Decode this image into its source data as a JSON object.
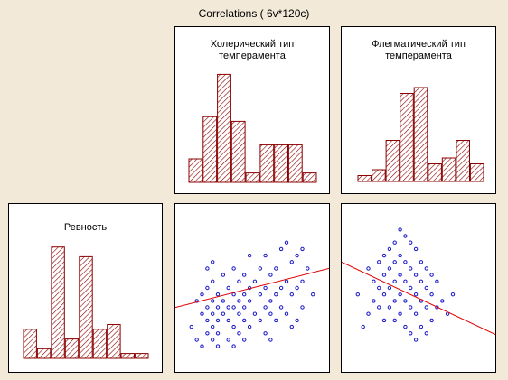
{
  "title": "Correlations ( 6v*120c)",
  "colors": {
    "bar_stroke": "#8b0000",
    "bar_hatch": "#8b0000",
    "point": "#1a1ac8",
    "fit_line": "#e00000",
    "background": "#f2e9d8"
  },
  "chart_data": [
    {
      "type": "bar",
      "title": "Холерический тип\nтемперамента",
      "values": [
        5,
        14,
        23,
        13,
        2,
        8,
        8,
        8,
        2
      ],
      "ylim": [
        0,
        25
      ]
    },
    {
      "type": "bar",
      "title": "Флегматический тип\nтемперамента",
      "values": [
        1,
        2,
        7,
        15,
        16,
        3,
        4,
        7,
        3
      ],
      "ylim": [
        0,
        18
      ]
    },
    {
      "type": "bar",
      "title": "Ревность",
      "values": [
        6,
        2,
        23,
        4,
        21,
        6,
        7,
        1,
        1
      ],
      "ylim": [
        0,
        25
      ]
    },
    {
      "type": "scatter",
      "x": [
        1,
        2,
        2,
        3,
        3,
        3,
        4,
        4,
        4,
        4,
        4,
        5,
        5,
        5,
        5,
        5,
        5,
        6,
        6,
        6,
        6,
        6,
        7,
        7,
        7,
        8,
        8,
        8,
        8,
        9,
        9,
        9,
        9,
        9,
        10,
        10,
        10,
        10,
        11,
        11,
        11,
        11,
        11,
        12,
        12,
        12,
        12,
        13,
        13,
        14,
        14,
        14,
        15,
        15,
        15,
        15,
        16,
        16,
        16,
        16,
        17,
        17,
        17,
        18,
        18,
        18,
        19,
        19,
        19,
        20,
        20,
        20,
        21,
        21,
        21,
        22,
        22,
        22,
        23,
        24
      ],
      "y": [
        5,
        9,
        3,
        10,
        7,
        2,
        11,
        8,
        6,
        4,
        14,
        12,
        9,
        7,
        5,
        3,
        15,
        10,
        8,
        6,
        4,
        2,
        13,
        9,
        7,
        11,
        8,
        6,
        3,
        14,
        10,
        8,
        5,
        2,
        12,
        9,
        7,
        4,
        13,
        10,
        8,
        6,
        3,
        16,
        11,
        9,
        5,
        12,
        7,
        14,
        10,
        6,
        16,
        11,
        8,
        4,
        13,
        9,
        7,
        3,
        14,
        10,
        6,
        17,
        11,
        8,
        18,
        12,
        7,
        15,
        10,
        5,
        16,
        11,
        6,
        17,
        12,
        8,
        14,
        10
      ],
      "xlim": [
        0,
        25
      ],
      "ylim": [
        0,
        22
      ],
      "fit_line": [
        [
          0,
          8.4
        ],
        [
          25,
          13.6
        ]
      ]
    },
    {
      "type": "scatter",
      "x": [
        1,
        2,
        3,
        3,
        4,
        4,
        5,
        5,
        5,
        6,
        6,
        6,
        6,
        7,
        7,
        7,
        7,
        8,
        8,
        8,
        8,
        8,
        9,
        9,
        9,
        9,
        9,
        10,
        10,
        10,
        10,
        10,
        11,
        11,
        11,
        11,
        11,
        12,
        12,
        12,
        12,
        12,
        13,
        13,
        13,
        13,
        14,
        14,
        14,
        14,
        15,
        15,
        15,
        16,
        16,
        17,
        18,
        19
      ],
      "y": [
        10,
        5,
        14,
        7,
        12,
        9,
        15,
        11,
        8,
        16,
        13,
        10,
        6,
        17,
        14,
        11,
        8,
        18,
        15,
        12,
        9,
        6,
        20,
        16,
        13,
        10,
        7,
        19,
        15,
        12,
        9,
        5,
        18,
        14,
        11,
        8,
        4,
        17,
        13,
        10,
        7,
        3,
        15,
        12,
        9,
        5,
        14,
        11,
        8,
        4,
        13,
        10,
        6,
        12,
        8,
        9,
        7,
        10
      ],
      "xlim": [
        0,
        25
      ],
      "ylim": [
        0,
        22
      ],
      "fit_line": [
        [
          0,
          14.2
        ],
        [
          25,
          4.6
        ]
      ]
    }
  ]
}
